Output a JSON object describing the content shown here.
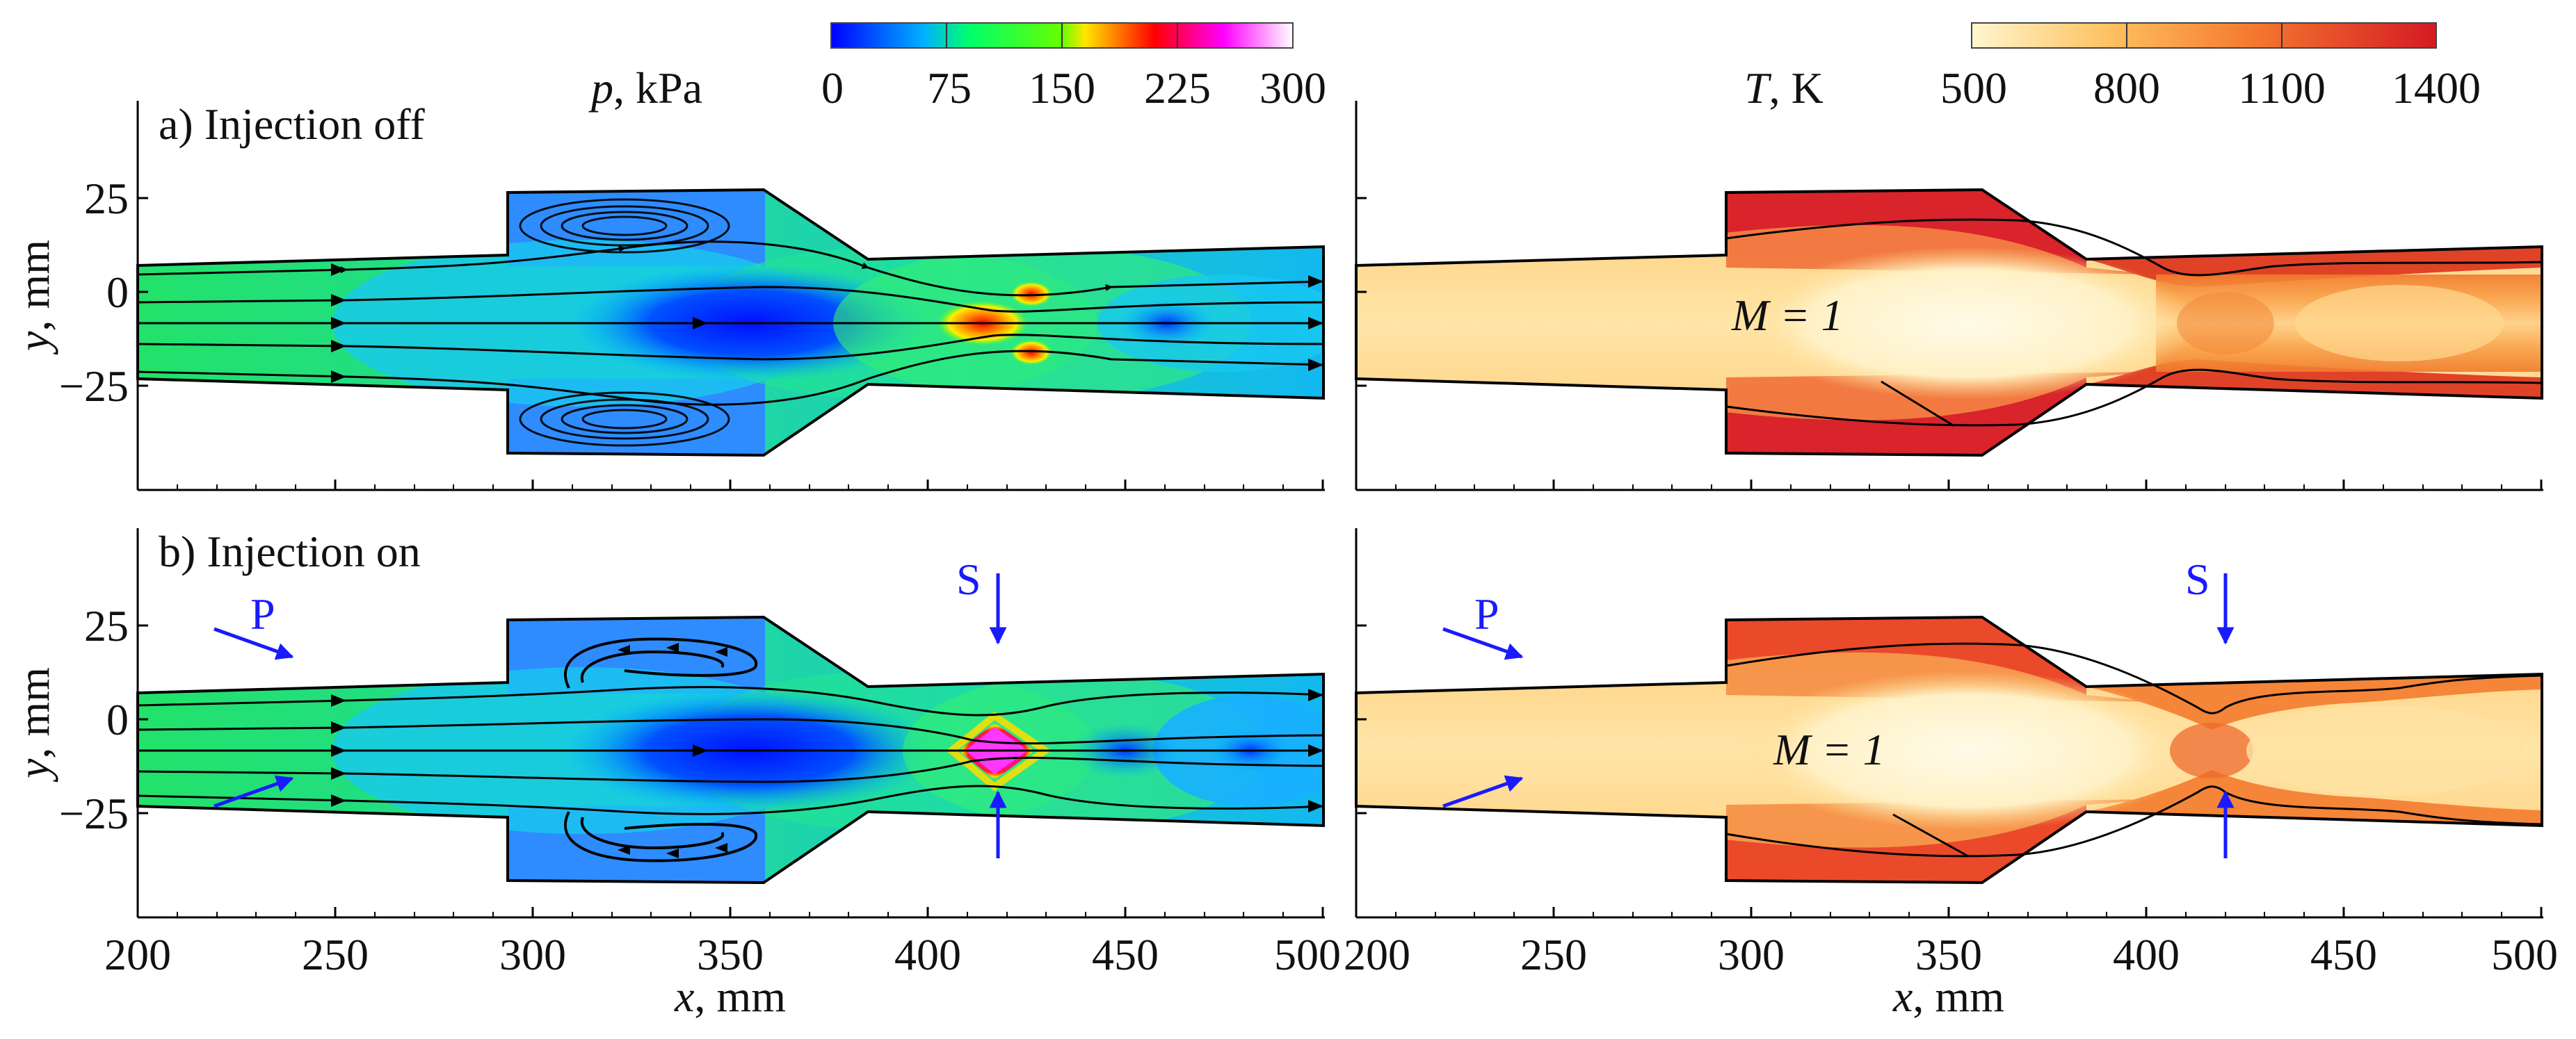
{
  "figure": {
    "panel_a_label": "a) Injection off",
    "panel_b_label": "b) Injection on",
    "pressure_bar": {
      "symbol": "p",
      "unit": ", kPa",
      "ticks": [
        "0",
        "75",
        "150",
        "225",
        "300"
      ],
      "colors": [
        "#0000ff",
        "#00e5ff",
        "#00ff3c",
        "#ffe600",
        "#ff0000",
        "#ff00ff",
        "#ffffff"
      ]
    },
    "temperature_bar": {
      "symbol": "T",
      "unit": ",  K",
      "ticks": [
        "500",
        "800",
        "1100",
        "1400"
      ],
      "colors": [
        "#fff3c8",
        "#ffb14a",
        "#f26a2e",
        "#d81e25"
      ]
    },
    "x_axis": {
      "symbol": "x",
      "unit": ", mm",
      "ticks": [
        "200",
        "250",
        "300",
        "350",
        "400",
        "450",
        "500"
      ]
    },
    "y_axis": {
      "symbol": "y",
      "unit": ", mm",
      "ticks": [
        "25",
        "0",
        "−25"
      ]
    },
    "annotations": {
      "mach_line": "M = 1",
      "primary_injection": "P",
      "secondary_injection": "S"
    }
  }
}
